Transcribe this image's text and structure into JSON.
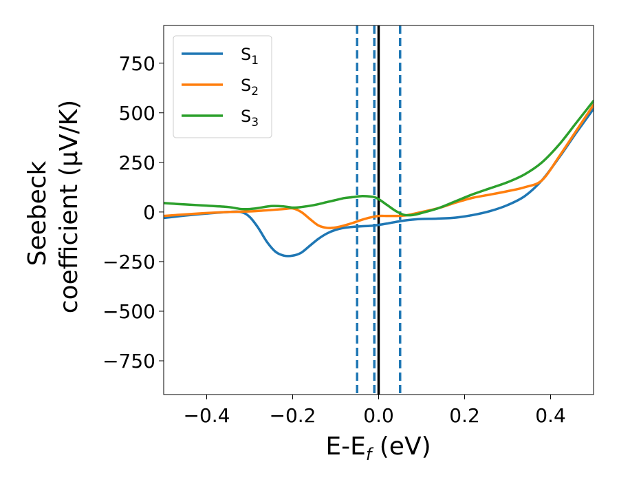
{
  "chart_data": {
    "type": "line",
    "title": "",
    "xlabel": "E-E",
    "xlabel_sub": "f",
    "xlabel_unit": " (eV)",
    "ylabel_line1": "Seebeck",
    "ylabel_line2": "coefficient  (μV/K)",
    "xlim": [
      -0.5,
      0.5
    ],
    "ylim": [
      -920,
      940
    ],
    "xticks": [
      -0.4,
      -0.2,
      0.0,
      0.2,
      0.4
    ],
    "xtick_labels": [
      "−0.4",
      "−0.2",
      "0.0",
      "0.2",
      "0.4"
    ],
    "yticks": [
      -750,
      -500,
      -250,
      0,
      250,
      500,
      750
    ],
    "ytick_labels": [
      "−750",
      "−500",
      "−250",
      "0",
      "250",
      "500",
      "750"
    ],
    "grid": false,
    "legend_position": "top-left",
    "vertical_lines": [
      {
        "x": -0.05,
        "style": "dashed",
        "color": "#1f77b4"
      },
      {
        "x": -0.01,
        "style": "dashed",
        "color": "#1f77b4"
      },
      {
        "x": 0.05,
        "style": "dashed",
        "color": "#1f77b4"
      },
      {
        "x": 0.0,
        "style": "solid",
        "color": "#000000"
      }
    ],
    "series": [
      {
        "name": "S",
        "subscript": "1",
        "color": "#1f77b4",
        "x": [
          -0.5,
          -0.45,
          -0.4,
          -0.35,
          -0.32,
          -0.3,
          -0.28,
          -0.26,
          -0.24,
          -0.22,
          -0.2,
          -0.18,
          -0.16,
          -0.14,
          -0.12,
          -0.1,
          -0.08,
          -0.06,
          -0.04,
          -0.02,
          0.0,
          0.02,
          0.04,
          0.06,
          0.08,
          0.1,
          0.14,
          0.18,
          0.22,
          0.26,
          0.3,
          0.34,
          0.38,
          0.42,
          0.46,
          0.5
        ],
        "y": [
          -30,
          -18,
          -8,
          0,
          0,
          -25,
          -80,
          -150,
          -200,
          -220,
          -220,
          -205,
          -170,
          -135,
          -108,
          -90,
          -80,
          -75,
          -72,
          -70,
          -65,
          -58,
          -50,
          -43,
          -38,
          -35,
          -33,
          -28,
          -15,
          5,
          35,
          80,
          160,
          275,
          400,
          520
        ]
      },
      {
        "name": "S",
        "subscript": "2",
        "color": "#ff7f0e",
        "x": [
          -0.5,
          -0.45,
          -0.4,
          -0.35,
          -0.3,
          -0.25,
          -0.22,
          -0.2,
          -0.18,
          -0.16,
          -0.14,
          -0.12,
          -0.1,
          -0.08,
          -0.06,
          -0.04,
          -0.02,
          0.0,
          0.02,
          0.04,
          0.06,
          0.08,
          0.1,
          0.14,
          0.18,
          0.22,
          0.26,
          0.3,
          0.34,
          0.38,
          0.42,
          0.46,
          0.5
        ],
        "y": [
          -20,
          -12,
          -5,
          0,
          3,
          10,
          15,
          18,
          0,
          -35,
          -68,
          -80,
          -78,
          -68,
          -55,
          -40,
          -28,
          -20,
          -20,
          -20,
          -18,
          -10,
          0,
          20,
          48,
          72,
          88,
          105,
          125,
          160,
          280,
          410,
          540
        ]
      },
      {
        "name": "S",
        "subscript": "3",
        "color": "#2ca02c",
        "x": [
          -0.5,
          -0.45,
          -0.4,
          -0.35,
          -0.32,
          -0.3,
          -0.28,
          -0.25,
          -0.22,
          -0.2,
          -0.18,
          -0.15,
          -0.12,
          -0.1,
          -0.08,
          -0.06,
          -0.04,
          -0.02,
          -0.01,
          0.0,
          0.02,
          0.04,
          0.06,
          0.08,
          0.1,
          0.14,
          0.18,
          0.22,
          0.26,
          0.3,
          0.34,
          0.38,
          0.42,
          0.46,
          0.5
        ],
        "y": [
          45,
          38,
          32,
          25,
          15,
          15,
          20,
          30,
          28,
          22,
          25,
          35,
          50,
          60,
          70,
          75,
          80,
          78,
          75,
          65,
          35,
          5,
          -15,
          -15,
          -5,
          20,
          55,
          90,
          120,
          150,
          190,
          250,
          340,
          450,
          560
        ]
      }
    ]
  }
}
